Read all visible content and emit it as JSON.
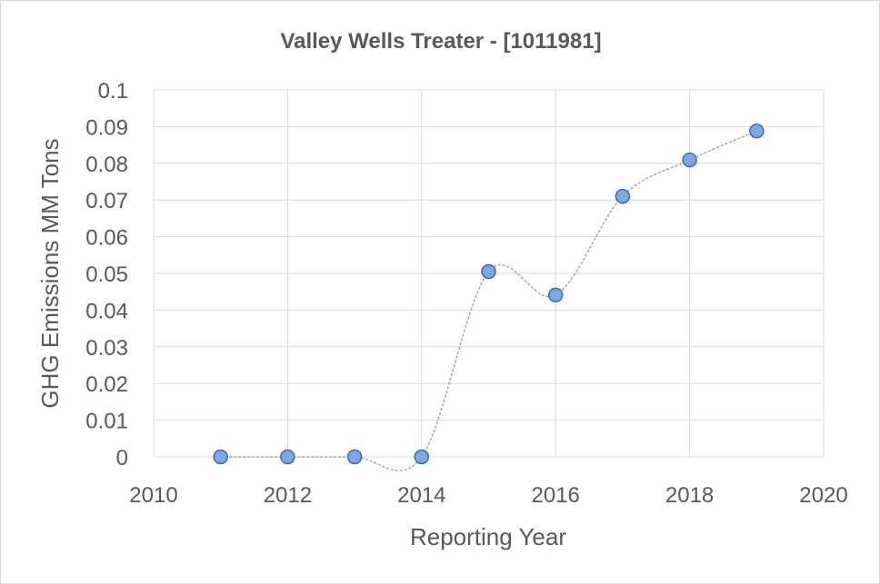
{
  "chart_data": {
    "type": "scatter",
    "title": "Valley Wells Treater - [1011981]",
    "xlabel": "Reporting Year",
    "ylabel": "GHG Emissions MM Tons",
    "xlim": [
      2010,
      2020
    ],
    "ylim": [
      0,
      0.1
    ],
    "x_ticks": [
      "2010",
      "2012",
      "2014",
      "2016",
      "2018",
      "2020"
    ],
    "y_ticks": [
      "0",
      "0.01",
      "0.02",
      "0.03",
      "0.04",
      "0.05",
      "0.06",
      "0.07",
      "0.08",
      "0.09",
      "0.1"
    ],
    "grid": true,
    "legend": "none",
    "line_style": "dotted smoothed",
    "colors": {
      "marker_fill": "#7ea6e0",
      "marker_stroke": "#3a6cb5",
      "line": "#a6a6a6",
      "grid": "#d9d9d9"
    },
    "series": [
      {
        "points": [
          {
            "x": 2011,
            "y": 0
          },
          {
            "x": 2012,
            "y": 0
          },
          {
            "x": 2013,
            "y": 0
          },
          {
            "x": 2014,
            "y": 0
          },
          {
            "x": 2015,
            "y": 0.0505
          },
          {
            "x": 2016,
            "y": 0.0441
          },
          {
            "x": 2017,
            "y": 0.071
          },
          {
            "x": 2018,
            "y": 0.0809
          },
          {
            "x": 2019,
            "y": 0.0888
          }
        ]
      }
    ]
  }
}
